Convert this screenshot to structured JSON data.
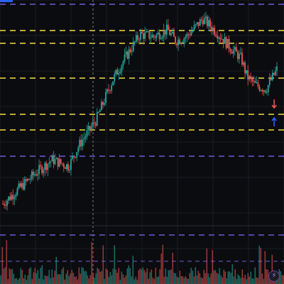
{
  "colors": {
    "background": "#0b0c0f",
    "grid": "#1a1c22",
    "bull": "#26a69a",
    "bear": "#ef5350",
    "yellow_level": "#f5dd43",
    "purple_level": "#6f59d9",
    "crosshair": "#787b86",
    "arrow_down": "#ef5350",
    "arrow_up": "#2962ff"
  },
  "toolbar": {
    "lightning_icon": "lightning-icon",
    "lightning_glyph": "⚡"
  },
  "chart_data": {
    "type": "candlestick",
    "title": "",
    "xlabel": "",
    "ylabel": "",
    "ylim": [
      0,
      100
    ],
    "grid": true,
    "price_path": [
      {
        "t": 0,
        "close": 10
      },
      {
        "t": 6,
        "close": 17
      },
      {
        "t": 12,
        "close": 24
      },
      {
        "t": 18,
        "close": 30
      },
      {
        "t": 24,
        "close": 27
      },
      {
        "t": 28,
        "close": 37
      },
      {
        "t": 34,
        "close": 48
      },
      {
        "t": 40,
        "close": 66
      },
      {
        "t": 44,
        "close": 75
      },
      {
        "t": 50,
        "close": 87
      },
      {
        "t": 55,
        "close": 86
      },
      {
        "t": 60,
        "close": 89
      },
      {
        "t": 63,
        "close": 84
      },
      {
        "t": 67,
        "close": 86
      },
      {
        "t": 73,
        "close": 94
      },
      {
        "t": 78,
        "close": 88
      },
      {
        "t": 83,
        "close": 81
      },
      {
        "t": 87,
        "close": 76
      },
      {
        "t": 89,
        "close": 68
      },
      {
        "t": 92,
        "close": 64
      },
      {
        "t": 96,
        "close": 62
      },
      {
        "t": 100,
        "close": 71
      }
    ],
    "levels": [
      {
        "kind": "support-resistance",
        "style": "yellow",
        "value": 93
      },
      {
        "kind": "support-resistance",
        "style": "yellow",
        "value": 89
      },
      {
        "kind": "support-resistance",
        "style": "yellow",
        "value": 77
      },
      {
        "kind": "support-resistance",
        "style": "yellow",
        "value": 64
      },
      {
        "kind": "support-resistance",
        "style": "yellow",
        "value": 58
      },
      {
        "kind": "band",
        "style": "purple",
        "value": 100
      },
      {
        "kind": "band",
        "style": "purple",
        "value": 48
      },
      {
        "kind": "band",
        "style": "purple",
        "value": 20
      }
    ],
    "crosshair_t": 35,
    "signals": [
      {
        "t": 99,
        "direction": "down"
      },
      {
        "t": 99,
        "direction": "up"
      }
    ],
    "volume_relative": "random-bars"
  }
}
